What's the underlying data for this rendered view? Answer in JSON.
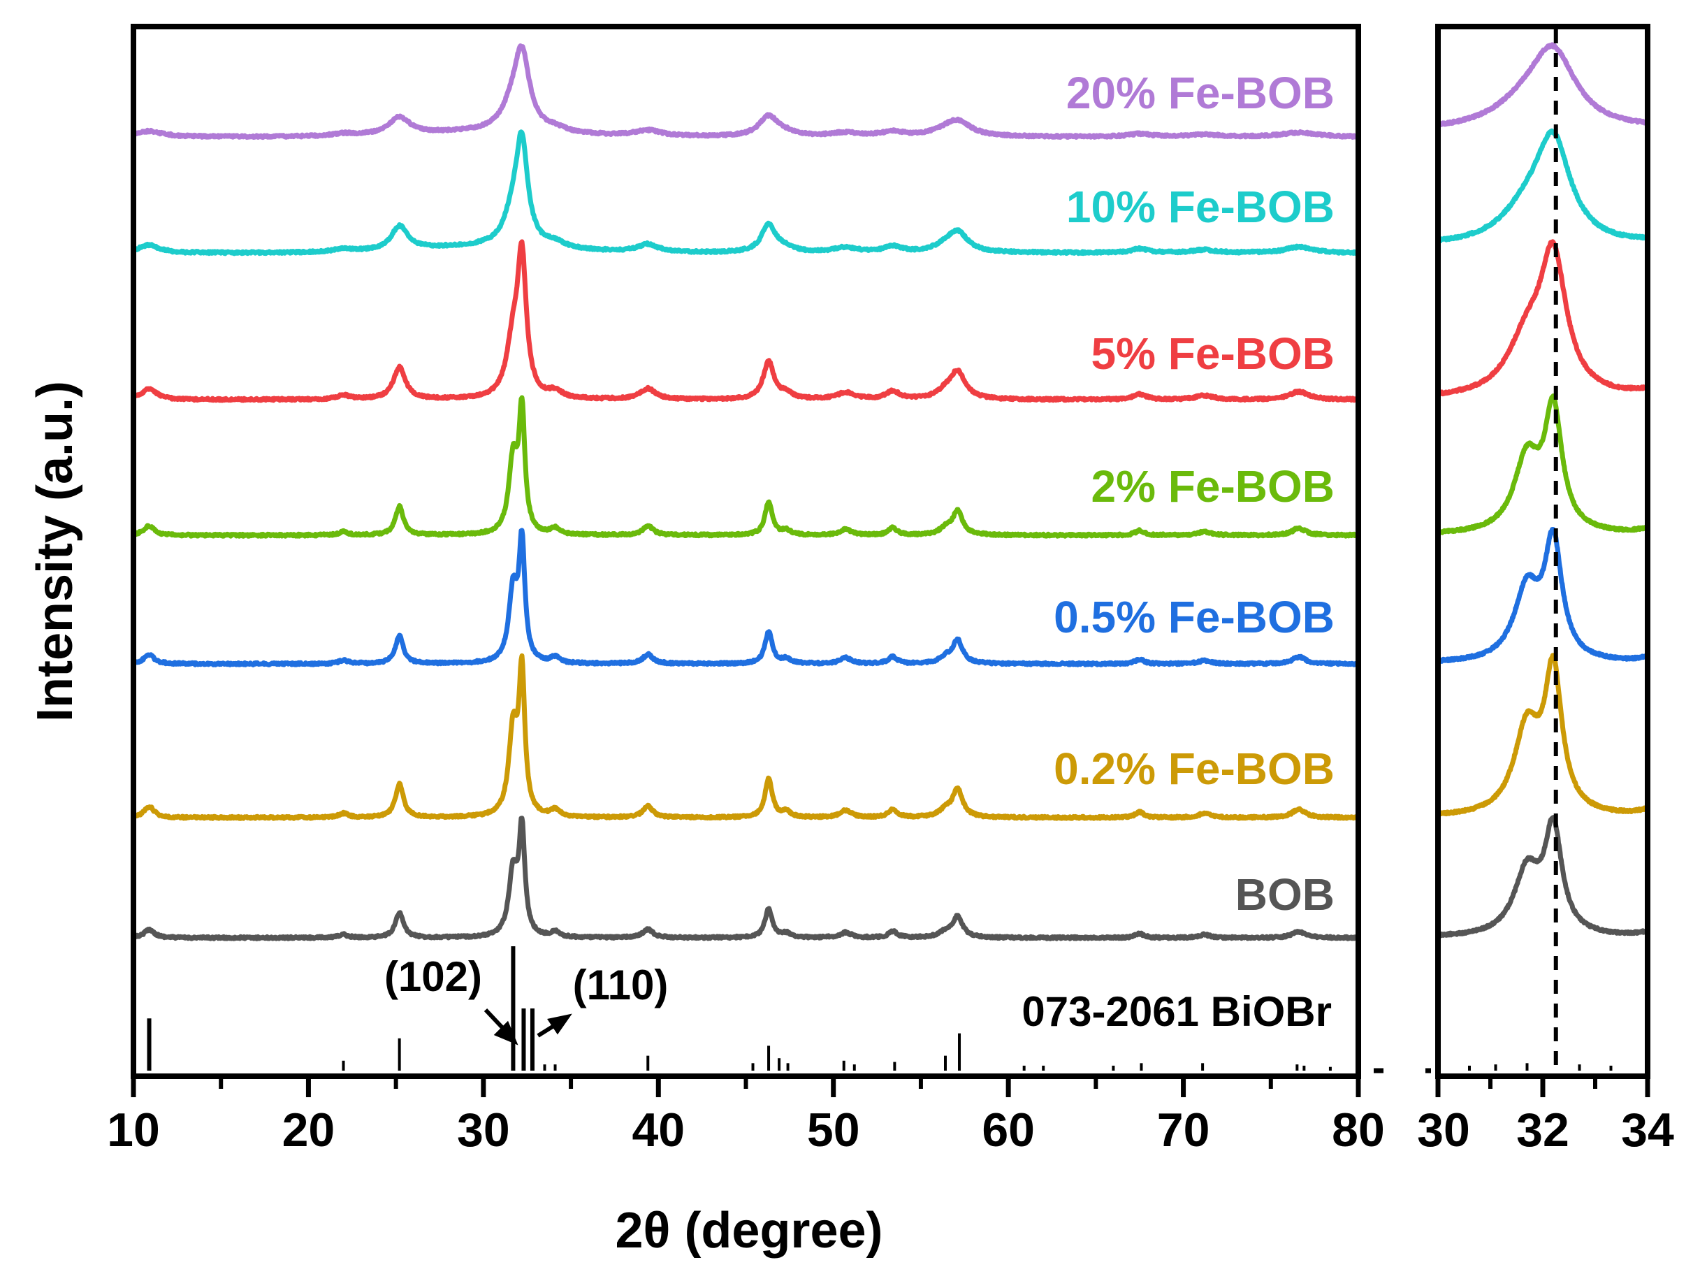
{
  "chart_data": [
    {
      "type": "line",
      "panel": "main",
      "xlabel": "2θ (degree)",
      "ylabel": "Intensity (a.u.)",
      "xlim": [
        10,
        80
      ],
      "xticks": [
        "10",
        "20",
        "30",
        "40",
        "50",
        "60",
        "70",
        "80"
      ],
      "series": [
        {
          "name": "BOB",
          "color": "#555555",
          "order": 0
        },
        {
          "name": "0.2% Fe-BOB",
          "color": "#cc9a06",
          "order": 1
        },
        {
          "name": "0.5% Fe-BOB",
          "color": "#1f6fe0",
          "order": 2
        },
        {
          "name": "2% Fe-BOB",
          "color": "#6aba0b",
          "order": 3
        },
        {
          "name": "5% Fe-BOB",
          "color": "#ef3e42",
          "order": 4
        },
        {
          "name": "10% Fe-BOB",
          "color": "#1dcccb",
          "order": 5
        },
        {
          "name": "20% Fe-BOB",
          "color": "#b07ad6",
          "order": 6
        }
      ],
      "peaks": [
        {
          "pos": 10.9,
          "rel": 0.08,
          "w": 0.35
        },
        {
          "pos": 22.0,
          "rel": 0.03,
          "w": 0.3
        },
        {
          "pos": 25.2,
          "rel": 0.24,
          "w": 0.28
        },
        {
          "pos": 31.7,
          "rel": 0.62,
          "w": 0.3
        },
        {
          "pos": 32.2,
          "rel": 1.0,
          "w": 0.2
        },
        {
          "pos": 34.1,
          "rel": 0.05,
          "w": 0.3
        },
        {
          "pos": 39.4,
          "rel": 0.08,
          "w": 0.35
        },
        {
          "pos": 46.3,
          "rel": 0.28,
          "w": 0.25
        },
        {
          "pos": 47.3,
          "rel": 0.04,
          "w": 0.3
        },
        {
          "pos": 50.7,
          "rel": 0.05,
          "w": 0.4
        },
        {
          "pos": 53.4,
          "rel": 0.06,
          "w": 0.3
        },
        {
          "pos": 56.4,
          "rel": 0.05,
          "w": 0.4
        },
        {
          "pos": 57.1,
          "rel": 0.2,
          "w": 0.35
        },
        {
          "pos": 67.5,
          "rel": 0.04,
          "w": 0.3
        },
        {
          "pos": 71.2,
          "rel": 0.03,
          "w": 0.4
        },
        {
          "pos": 76.6,
          "rel": 0.06,
          "w": 0.45
        }
      ],
      "reference": {
        "name": "073-2061 BiOBr",
        "sticks": [
          [
            10.9,
            0.42
          ],
          [
            22.0,
            0.08
          ],
          [
            25.2,
            0.26
          ],
          [
            31.7,
            1.0
          ],
          [
            32.3,
            0.5
          ],
          [
            32.8,
            0.5
          ],
          [
            33.5,
            0.05
          ],
          [
            34.1,
            0.05
          ],
          [
            39.4,
            0.12
          ],
          [
            45.4,
            0.06
          ],
          [
            46.3,
            0.2
          ],
          [
            46.9,
            0.1
          ],
          [
            47.4,
            0.06
          ],
          [
            50.6,
            0.08
          ],
          [
            51.2,
            0.05
          ],
          [
            53.5,
            0.07
          ],
          [
            56.4,
            0.12
          ],
          [
            57.2,
            0.3
          ],
          [
            60.9,
            0.04
          ],
          [
            62.0,
            0.04
          ],
          [
            66.0,
            0.04
          ],
          [
            67.6,
            0.06
          ],
          [
            71.1,
            0.06
          ],
          [
            76.5,
            0.05
          ],
          [
            76.9,
            0.04
          ],
          [
            78.4,
            0.03
          ]
        ],
        "annotations": [
          "(102)",
          "(110)"
        ]
      }
    },
    {
      "type": "line",
      "panel": "zoom",
      "xlim": [
        30,
        34
      ],
      "xticks": [
        "30",
        "32",
        "34"
      ],
      "dashed_line_x": 32.25,
      "series_names": [
        "BOB",
        "0.2% Fe-BOB",
        "0.5% Fe-BOB",
        "2% Fe-BOB",
        "5% Fe-BOB",
        "10% Fe-BOB",
        "20% Fe-BOB"
      ]
    }
  ]
}
